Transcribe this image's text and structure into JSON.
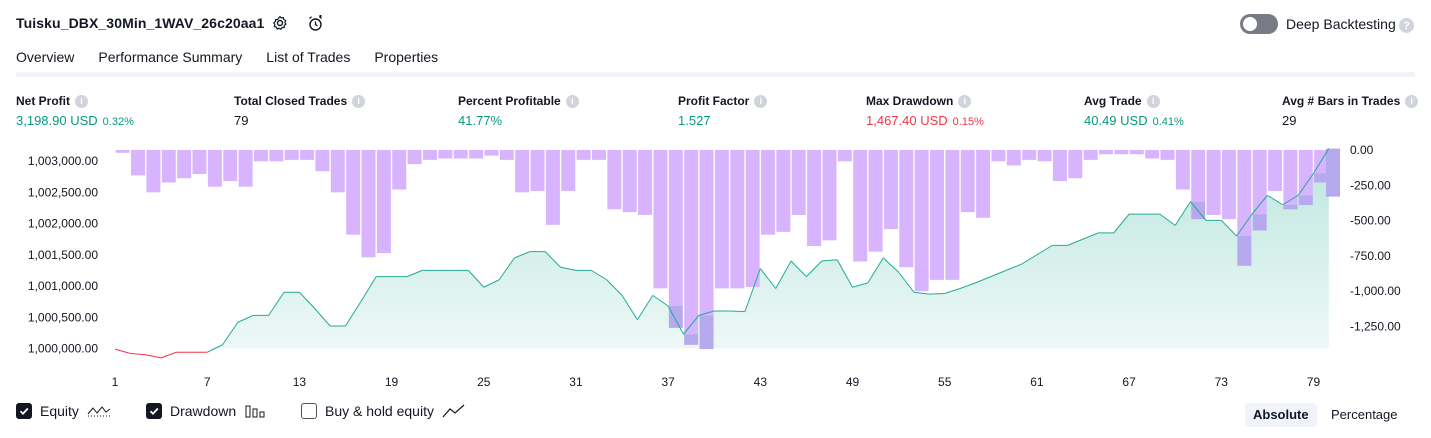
{
  "header": {
    "strategy_name": "Tuisku_DBX_30Min_1WAV_26c20aa1",
    "deep_backtesting_label": "Deep Backtesting",
    "deep_backtesting_enabled": false
  },
  "tabs": [
    {
      "label": "Overview",
      "active": true
    },
    {
      "label": "Performance Summary",
      "active": false
    },
    {
      "label": "List of Trades",
      "active": false
    },
    {
      "label": "Properties",
      "active": false
    }
  ],
  "stats": {
    "net_profit": {
      "label": "Net Profit",
      "value": "3,198.90 USD",
      "pct": "0.32%"
    },
    "total_closed_trades": {
      "label": "Total Closed Trades",
      "value": "79"
    },
    "percent_profitable": {
      "label": "Percent Profitable",
      "value": "41.77%"
    },
    "profit_factor": {
      "label": "Profit Factor",
      "value": "1.527"
    },
    "max_drawdown": {
      "label": "Max Drawdown",
      "value": "1,467.40 USD",
      "pct": "0.15%"
    },
    "avg_trade": {
      "label": "Avg Trade",
      "value": "40.49 USD",
      "pct": "0.41%"
    },
    "avg_bars": {
      "label": "Avg # Bars in Trades",
      "value": "29"
    }
  },
  "chart_data": {
    "type": "line",
    "x_ticks": [
      "1",
      "7",
      "13",
      "19",
      "25",
      "31",
      "37",
      "43",
      "49",
      "55",
      "61",
      "67",
      "73",
      "79"
    ],
    "left_axis_ticks": [
      "1,003,000.00",
      "1,002,500.00",
      "1,002,000.00",
      "1,001,500.00",
      "1,001,000.00",
      "1,000,500.00",
      "1,000,000.00"
    ],
    "right_axis_ticks": [
      "0.00",
      "-250.00",
      "-500.00",
      "-750.00",
      "-1,000.00",
      "-1,250.00"
    ],
    "left_ylim": [
      1000000,
      1003000
    ],
    "right_ylim": [
      -1420,
      0
    ],
    "colors": {
      "equity_up": "#22ab94",
      "equity_down": "#f23645",
      "drawdown": "#d8b4fe",
      "overlap": "#b6a9ee"
    },
    "equity": [
      -10,
      -80,
      -100,
      -150,
      -60,
      -60,
      -60,
      60,
      420,
      530,
      530,
      900,
      900,
      640,
      360,
      360,
      750,
      1150,
      1150,
      1150,
      1250,
      1250,
      1250,
      1250,
      980,
      1100,
      1450,
      1550,
      1550,
      1300,
      1250,
      1250,
      1100,
      850,
      460,
      850,
      680,
      230,
      530,
      600,
      600,
      590,
      1280,
      960,
      1400,
      1150,
      1400,
      1420,
      980,
      1050,
      1450,
      1220,
      900,
      870,
      880,
      960,
      1050,
      1150,
      1250,
      1350,
      1500,
      1650,
      1650,
      1750,
      1850,
      1850,
      2150,
      2150,
      2150,
      1970,
      2350,
      2050,
      2050,
      1800,
      2150,
      2450,
      2300,
      2450,
      2800,
      3198.9
    ],
    "drawdown": [
      -20,
      -180,
      -300,
      -230,
      -200,
      -170,
      -260,
      -220,
      -260,
      -80,
      -80,
      -70,
      -70,
      -150,
      -300,
      -600,
      -760,
      -730,
      -280,
      -100,
      -70,
      -60,
      -60,
      -60,
      -40,
      -70,
      -300,
      -290,
      -530,
      -290,
      -70,
      -70,
      -420,
      -440,
      -460,
      -980,
      -1260,
      -1380,
      -1410,
      -980,
      -980,
      -970,
      -600,
      -580,
      -460,
      -680,
      -640,
      -80,
      -790,
      -720,
      -560,
      -830,
      -1000,
      -920,
      -920,
      -440,
      -480,
      -80,
      -110,
      -70,
      -80,
      -220,
      -200,
      -70,
      -30,
      -30,
      -30,
      -60,
      -70,
      -280,
      -490,
      -460,
      -490,
      -820,
      -570,
      -290,
      -420,
      -390,
      -230,
      -330
    ]
  },
  "legend": {
    "equity_label": "Equity",
    "drawdown_label": "Drawdown",
    "buy_hold_label": "Buy & hold equity",
    "equity_checked": true,
    "drawdown_checked": true,
    "buy_hold_checked": false
  },
  "display_mode": {
    "absolute_label": "Absolute",
    "percentage_label": "Percentage",
    "selected": "Absolute"
  }
}
